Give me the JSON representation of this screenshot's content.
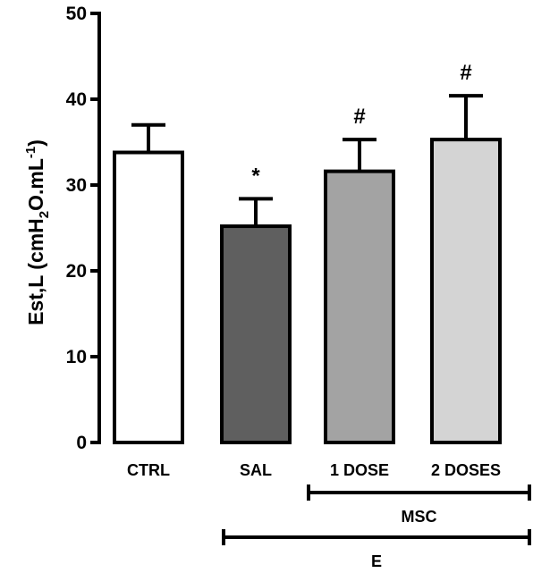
{
  "chart_data": {
    "type": "bar",
    "ylabel": {
      "prefix": "Est,L (cmH",
      "sub": "2",
      "middle": "O.mL",
      "sup": "-1",
      "suffix": ")"
    },
    "ylim": [
      0,
      50
    ],
    "yticks": [
      0,
      10,
      20,
      30,
      40,
      50
    ],
    "categories": [
      "CTRL",
      "SAL",
      "1 DOSE",
      "2 DOSES"
    ],
    "values": [
      33.8,
      25.2,
      31.6,
      35.3
    ],
    "errors": [
      3.2,
      3.2,
      3.7,
      5.1
    ],
    "colors": [
      "#ffffff",
      "#5f5f5f",
      "#a3a3a3",
      "#d4d4d4"
    ],
    "annotations": [
      "",
      "*",
      "#",
      "#"
    ],
    "groups": [
      {
        "label": "MSC",
        "from": "1 DOSE",
        "to": "2 DOSES"
      },
      {
        "label": "E",
        "from": "SAL",
        "to": "2 DOSES"
      }
    ],
    "grid": false,
    "legend": "none"
  }
}
